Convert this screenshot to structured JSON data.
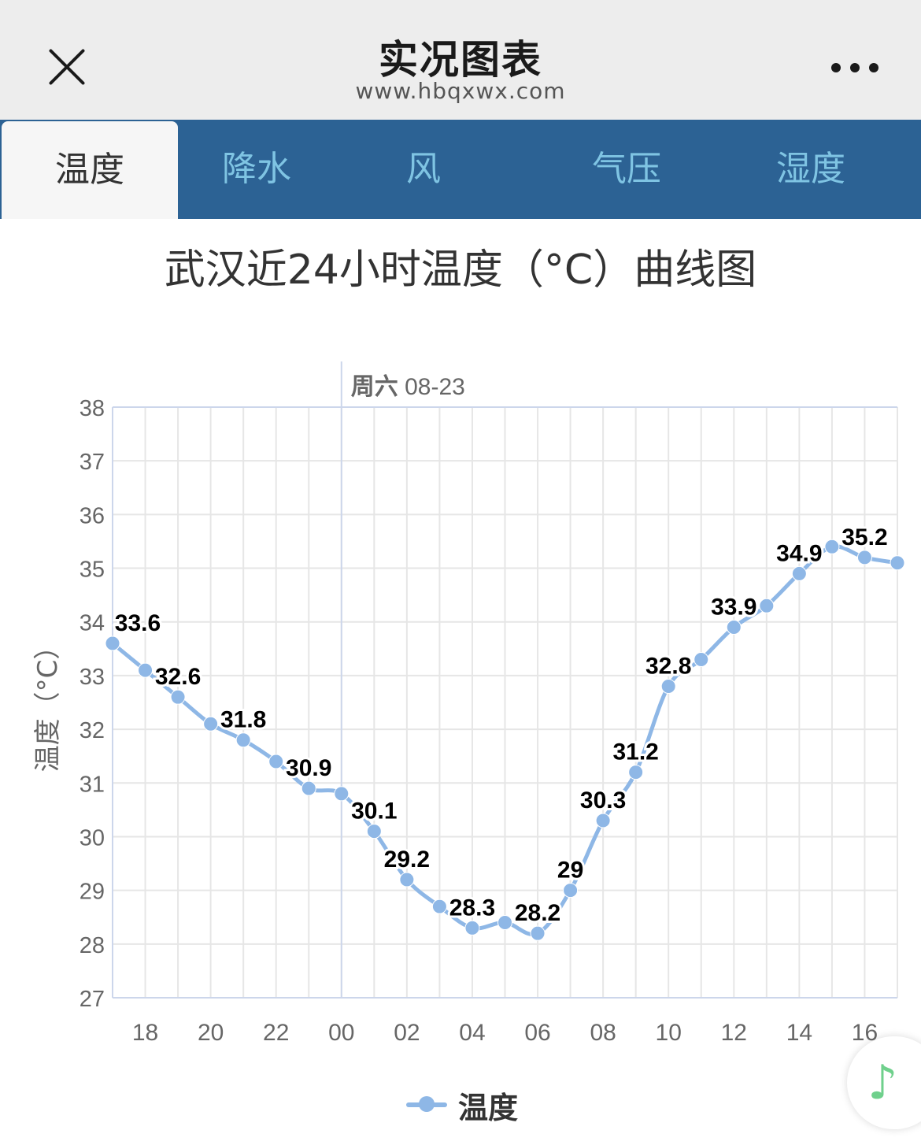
{
  "header": {
    "title": "实况图表",
    "subtitle": "www.hbqxwx.com"
  },
  "tabs": [
    {
      "label": "温度",
      "active": true
    },
    {
      "label": "降水",
      "active": false
    },
    {
      "label": "风",
      "active": false
    },
    {
      "label": "气压",
      "active": false
    },
    {
      "label": "湿度",
      "active": false
    }
  ],
  "colors": {
    "series": "#8eb7e6",
    "tab_bar": "#2c6294",
    "tab_text": "#7fc4e3",
    "music_icon": "#6fd08c"
  },
  "icons": {
    "close": "close-icon",
    "more": "more-dots-icon",
    "music": "music-note-icon"
  },
  "music_glyph": "♪",
  "chart_data": {
    "type": "line",
    "title": "武汉近24小时温度（°C）曲线图",
    "ylabel": "温度（°C）",
    "xlabel": "",
    "ylim": [
      27,
      38
    ],
    "yticks": [
      "27",
      "28",
      "29",
      "30",
      "31",
      "32",
      "33",
      "34",
      "35",
      "36",
      "37",
      "38"
    ],
    "x": [
      "17",
      "18",
      "19",
      "20",
      "21",
      "22",
      "23",
      "00",
      "01",
      "02",
      "03",
      "04",
      "05",
      "06",
      "07",
      "08",
      "09",
      "10",
      "11",
      "12",
      "13",
      "14",
      "15",
      "16",
      "17"
    ],
    "xtick_labels": [
      "18",
      "20",
      "22",
      "00",
      "02",
      "04",
      "06",
      "08",
      "10",
      "12",
      "14",
      "16"
    ],
    "day_marker": {
      "at": "00",
      "label_day": "周六",
      "label_date": "08-23"
    },
    "series": [
      {
        "name": "温度",
        "values": [
          33.6,
          33.1,
          32.6,
          32.1,
          31.8,
          31.4,
          30.9,
          30.8,
          30.1,
          29.2,
          28.7,
          28.3,
          28.4,
          28.2,
          29.0,
          30.3,
          31.2,
          32.8,
          33.3,
          33.9,
          34.3,
          34.9,
          35.4,
          35.2,
          35.1
        ]
      }
    ],
    "data_labels": [
      {
        "x": "17",
        "text": "33.6"
      },
      {
        "x": "19",
        "text": "32.6"
      },
      {
        "x": "21",
        "text": "31.8"
      },
      {
        "x": "23",
        "text": "30.9"
      },
      {
        "x": "01",
        "text": "30.1"
      },
      {
        "x": "02",
        "text": "29.2"
      },
      {
        "x": "04",
        "text": "28.3"
      },
      {
        "x": "06",
        "text": "28.2"
      },
      {
        "x": "07",
        "text": "29"
      },
      {
        "x": "08",
        "text": "30.3"
      },
      {
        "x": "09",
        "text": "31.2"
      },
      {
        "x": "10",
        "text": "32.8"
      },
      {
        "x": "12",
        "text": "33.9"
      },
      {
        "x": "14",
        "text": "34.9"
      },
      {
        "x": "16",
        "text": "35.2"
      }
    ],
    "grid": true,
    "legend": "bottom-center"
  }
}
